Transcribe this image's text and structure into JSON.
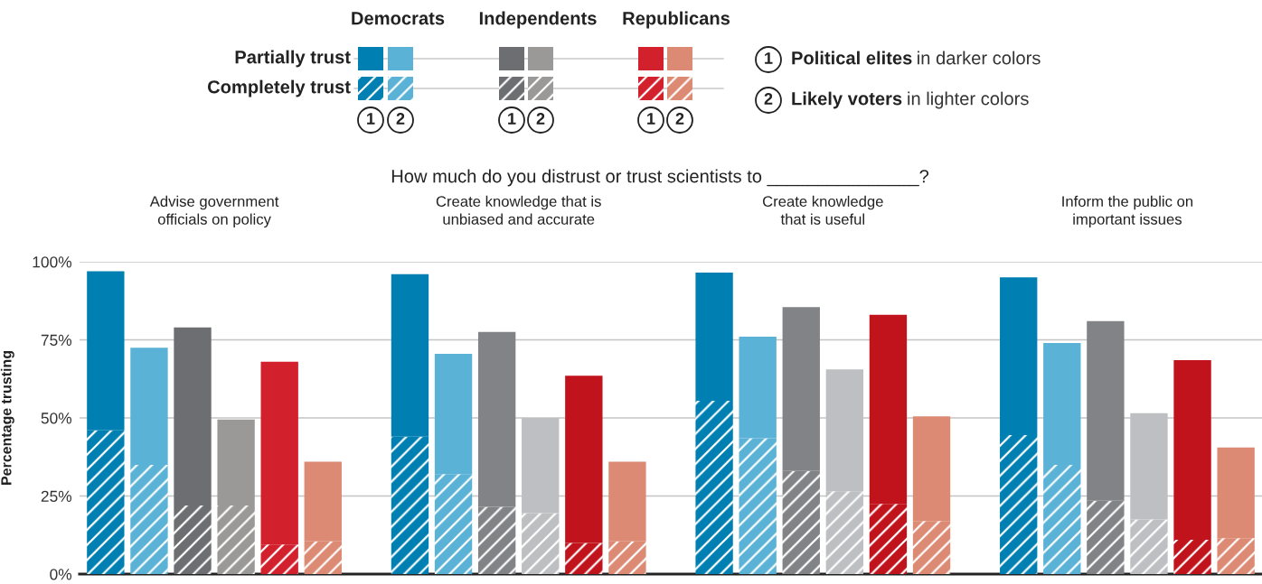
{
  "chart_data": {
    "type": "bar",
    "stacked": true,
    "title": "How much do you distrust or trust scientists to _______________?",
    "ylabel": "Percentage trusting",
    "annotations": [
      "Democrats",
      "Independents",
      "Republicans",
      "1",
      "2",
      "Political elites",
      "in darker colors",
      "Likely voters",
      "in lighter colors",
      "Advise government\nofficials on policy",
      "Create knowledge that is\nunbiased and accurate",
      "Create knowledge\nthat is useful",
      "Inform the public on\nimportant issues"
    ],
    "categories": [
      null,
      null,
      null,
      null,
      null,
      null,
      null,
      null,
      null,
      null,
      null,
      null,
      null,
      null,
      null,
      null,
      null,
      null,
      null,
      null,
      null,
      null,
      null,
      null,
      null,
      null,
      null
    ],
    "ylim": [
      0,
      100
    ],
    "yticks": [
      {
        "value": 0,
        "label": "0%"
      },
      {
        "value": 25,
        "label": "25%"
      },
      {
        "value": 50,
        "label": "50%"
      },
      {
        "value": 75,
        "label": "75%"
      },
      {
        "value": 100,
        "label": "100%"
      }
    ],
    "grid": "y",
    "legend": "top",
    "series": [
      {
        "name": "Completely trust",
        "colors": [
          "#0080b2",
          "#5ab2d6",
          "#6d6e72",
          "#9a9997",
          "#d3202d",
          "#dc8a74",
          null,
          "#0080b2",
          "#5ab2d6",
          "#828387",
          "#bebfc2",
          "#c1131c",
          "#dc8a74",
          null,
          "#0080b2",
          "#5ab2d6",
          "#828387",
          "#bebfc2",
          "#c1131c",
          "#dc8a74",
          null,
          "#0080b2",
          "#5ab2d6",
          "#828387",
          "#bebfc2",
          "#c1131c",
          "#dc8a74"
        ],
        "values": [
          46,
          35,
          22,
          22,
          9.5,
          10.5,
          null,
          44,
          32,
          21.5,
          19.5,
          10,
          10.5,
          null,
          55.5,
          43.5,
          33,
          26.5,
          22.5,
          17,
          null,
          44.5,
          35,
          23.5,
          17.5,
          11,
          11.5
        ]
      },
      {
        "name": "Partially trust",
        "colors": [
          "#0080b2",
          "#5ab2d6",
          "#6d6e72",
          "#9a9997",
          "#d3202d",
          "#dc8a74",
          null,
          "#0080b2",
          "#5ab2d6",
          "#828387",
          "#bebfc2",
          "#c1131c",
          "#dc8a74",
          null,
          "#0080b2",
          "#5ab2d6",
          "#828387",
          "#bebfc2",
          "#c1131c",
          "#dc8a74",
          null,
          "#0080b2",
          "#5ab2d6",
          "#828387",
          "#bebfc2",
          "#c1131c",
          "#dc8a74"
        ],
        "values": [
          51,
          37.5,
          57,
          27.5,
          58.5,
          25.5,
          null,
          52,
          38.5,
          56,
          30.5,
          53.5,
          25.5,
          null,
          41,
          32.5,
          52.5,
          39,
          60.5,
          33.5,
          null,
          50.5,
          39,
          57.5,
          34,
          57.5,
          29
        ]
      }
    ]
  }
}
